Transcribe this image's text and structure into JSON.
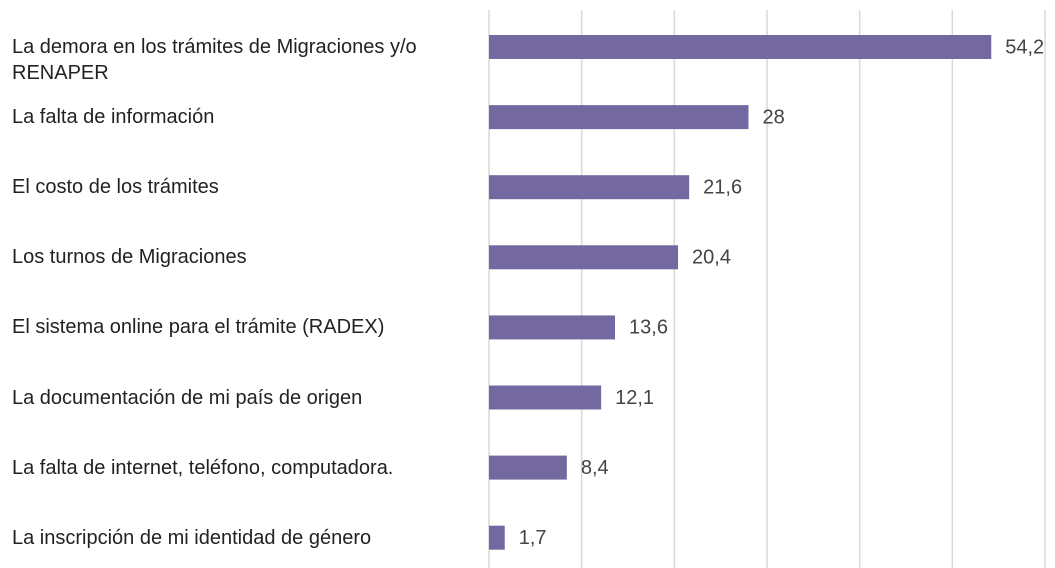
{
  "chart_data": {
    "type": "bar",
    "orientation": "horizontal",
    "categories": [
      "La demora en los trámites de Migraciones y/o RENAPER",
      "La falta de información",
      "El costo de los trámites",
      "Los turnos de Migraciones",
      "El sistema online para el trámite (RADEX)",
      "La documentación de mi país de origen",
      "La falta de internet, teléfono, computadora.",
      "La inscripción de mi identidad de género"
    ],
    "values": [
      54.2,
      28,
      21.6,
      20.4,
      13.6,
      12.1,
      8.4,
      1.7
    ],
    "value_labels": [
      "54,2",
      "28",
      "21,6",
      "20,4",
      "13,6",
      "12,1",
      "8,4",
      "1,7"
    ],
    "color": "#7369a0",
    "xlim": [
      0,
      60
    ],
    "xticks": [
      0,
      10,
      20,
      30,
      40,
      50,
      60
    ],
    "grid": true
  }
}
